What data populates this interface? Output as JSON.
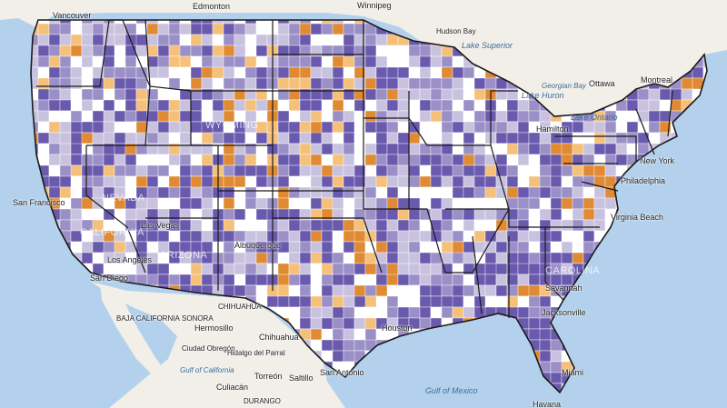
{
  "map": {
    "colors": {
      "water": "#b3d1ec",
      "land": "#f2efe9",
      "choropleth": [
        "#ffffff",
        "#c8c2df",
        "#9a8fc7",
        "#6a5aad",
        "#f5c07a",
        "#e08a33"
      ]
    },
    "labels": {
      "vancouver": "Vancouver",
      "edmonton": "Edmonton",
      "winnipeg": "Winnipeg",
      "hudson_bay": "Hudson Bay",
      "lake_superior": "Lake Superior",
      "lake_huron": "Lake Huron",
      "georgian_bay": "Georgian Bay",
      "ottawa": "Ottawa",
      "montreal": "Montreal",
      "hamilton": "Hamilton",
      "lake_ontario": "Lake Ontario",
      "new_york": "New York",
      "philadelphia": "Philadelphia",
      "virginia_beach": "Virginia Beach",
      "carolina": "CAROLINA",
      "savannah": "Savannah",
      "jacksonville": "Jacksonville",
      "miami": "Miami",
      "havana": "Havana",
      "houston": "Houston",
      "san_antonio": "San Antonio",
      "gulf_of_mexico": "Gulf of Mexico",
      "san_francisco": "San Francisco",
      "los_angeles": "Los Angeles",
      "san_diego": "San Diego",
      "las_vegas": "Las Vegas",
      "albuquerque": "Albuquerque",
      "nevada": "NEVADA",
      "wyoming": "WYOMING",
      "arizona": "ARIZONA",
      "california": "CALIFORNIA",
      "sonora": "SONORA",
      "hermosillo": "Hermosillo",
      "chihuahua_state": "CHIHUAHUA",
      "chihuahua_city": "Chihuahua",
      "ciudad_obregon": "Ciudad Obregón",
      "hidalgo_del_parral": "Hidalgo del Parral",
      "torreon": "Torreón",
      "saltillo": "Saltillo",
      "culiacan": "Culiacán",
      "durango": "DURANGO",
      "baja_california": "BAJA CALIFORNIA",
      "gulf_of_california": "Gulf of California"
    }
  }
}
